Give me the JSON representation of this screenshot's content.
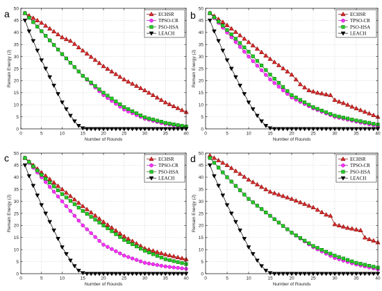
{
  "chart_data": [
    {
      "panel": "a",
      "type": "line",
      "xlabel": "Number of Rounds",
      "ylabel": "Remain Energy (J)",
      "xlim": [
        0,
        40
      ],
      "ylim": [
        0,
        50
      ],
      "xticks": [
        0,
        5,
        10,
        15,
        20,
        25,
        30,
        35,
        40
      ],
      "yticks": [
        0,
        5,
        10,
        15,
        20,
        25,
        30,
        35,
        40,
        45,
        50
      ],
      "grid": true,
      "legend": "top-right",
      "x": [
        1,
        2,
        3,
        4,
        5,
        6,
        7,
        8,
        9,
        10,
        11,
        12,
        13,
        14,
        15,
        16,
        17,
        18,
        19,
        20,
        21,
        22,
        23,
        24,
        25,
        26,
        27,
        28,
        29,
        30,
        31,
        32,
        33,
        34,
        35,
        36,
        37,
        38,
        39,
        40
      ],
      "series": [
        {
          "name": "ECHSR",
          "color": "#800000",
          "fill": "#d42a2a",
          "marker": "triangle-up",
          "values": [
            48,
            47,
            46,
            45,
            44,
            42.8,
            41.6,
            40.4,
            39.2,
            38,
            37.2,
            36.5,
            35.2,
            33.8,
            32.5,
            31.2,
            29.9,
            28.6,
            27.3,
            26,
            24.9,
            23.8,
            22.7,
            21.6,
            20.5,
            19.6,
            18.7,
            17.8,
            16.9,
            16,
            15,
            14,
            13,
            12,
            11,
            10.2,
            9.4,
            8.6,
            7.8,
            7
          ]
        },
        {
          "name": "TPSO-CR",
          "color": "#990099",
          "fill": "#ff33ff",
          "marker": "circle",
          "values": [
            48,
            46.1,
            44.3,
            42.4,
            40.5,
            38.6,
            36.7,
            34.8,
            32.9,
            31,
            29.2,
            27.4,
            25.6,
            23.8,
            22,
            20.4,
            18.8,
            17.2,
            15.6,
            14,
            12.8,
            11.6,
            10.4,
            9.2,
            8,
            7.2,
            6.5,
            5.7,
            5,
            4.2,
            3.8,
            3.3,
            2.9,
            2.4,
            2,
            1.8,
            1.5,
            1.3,
            1,
            0.8
          ]
        },
        {
          "name": "PSO-HSA",
          "color": "#006600",
          "fill": "#22cc22",
          "marker": "square",
          "values": [
            48,
            46.1,
            44.3,
            42.4,
            40.5,
            38.6,
            36.7,
            34.8,
            32.9,
            31,
            29.2,
            27.4,
            25.6,
            23.8,
            22,
            20.6,
            19.2,
            17.8,
            16.4,
            15,
            13.8,
            12.6,
            11.4,
            10.2,
            9,
            8.2,
            7.3,
            6.5,
            5.6,
            4.8,
            4.3,
            3.9,
            3.4,
            3,
            2.5,
            2.2,
            1.9,
            1.6,
            1.3,
            1
          ]
        },
        {
          "name": "LEACH",
          "color": "#000000",
          "fill": "#000000",
          "marker": "triangle-down",
          "values": [
            45,
            40.5,
            36.5,
            32.5,
            28.5,
            25,
            21.5,
            18,
            14.5,
            11,
            8.2,
            5.5,
            3.2,
            1.3,
            0.3,
            0,
            0,
            0,
            0,
            0,
            0,
            0,
            0,
            0,
            0,
            0,
            0,
            0,
            0,
            0,
            0,
            0,
            0,
            0,
            0,
            0,
            0,
            0,
            0,
            0
          ]
        }
      ]
    },
    {
      "panel": "b",
      "type": "line",
      "xlabel": "Number of Rounds",
      "ylabel": "Remain Energy (J)",
      "xlim": [
        0,
        40
      ],
      "ylim": [
        0,
        50
      ],
      "xticks": [
        0,
        5,
        10,
        15,
        20,
        25,
        30,
        35,
        40
      ],
      "yticks": [
        0,
        5,
        10,
        15,
        20,
        25,
        30,
        35,
        40,
        45,
        50
      ],
      "grid": true,
      "legend": "top-right",
      "x": [
        1,
        2,
        3,
        4,
        5,
        6,
        7,
        8,
        9,
        10,
        11,
        12,
        13,
        14,
        15,
        16,
        17,
        18,
        19,
        20,
        21,
        22,
        23,
        24,
        25,
        26,
        27,
        28,
        29,
        30,
        31,
        32,
        33,
        34,
        35,
        36,
        37,
        38,
        39,
        40
      ],
      "series": [
        {
          "name": "ECHSR",
          "color": "#800000",
          "fill": "#d42a2a",
          "marker": "triangle-up",
          "values": [
            48,
            46.8,
            45.5,
            44.3,
            43,
            41.6,
            40.2,
            38.8,
            37.4,
            36,
            34.6,
            33.2,
            31.8,
            30.4,
            29,
            27.7,
            26.4,
            25.1,
            23.8,
            22.5,
            20.5,
            18.5,
            17.2,
            16,
            15.5,
            15,
            14.7,
            14.3,
            14,
            12,
            11.3,
            10.7,
            10,
            9.2,
            8.5,
            7.8,
            7.1,
            6.4,
            5.7,
            5
          ]
        },
        {
          "name": "TPSO-CR",
          "color": "#990099",
          "fill": "#ff33ff",
          "marker": "circle",
          "values": [
            48,
            46,
            44,
            42,
            40,
            38,
            36,
            34,
            32,
            30,
            28.1,
            26.2,
            24.3,
            22.4,
            20.5,
            19,
            17.5,
            16,
            14.5,
            13,
            12.1,
            11.2,
            10.3,
            9.4,
            8.5,
            7.8,
            7.1,
            6.4,
            5.7,
            5,
            4.6,
            4.2,
            3.8,
            3.4,
            3,
            2.6,
            2.3,
            1.9,
            1.6,
            1.2
          ]
        },
        {
          "name": "PSO-HSA",
          "color": "#006600",
          "fill": "#22cc22",
          "marker": "square",
          "values": [
            48,
            46.3,
            44.5,
            42.8,
            41,
            39.2,
            37.4,
            35.6,
            33.8,
            32,
            30.1,
            28.2,
            26.3,
            24.4,
            22.5,
            20.8,
            19.1,
            17.4,
            15.7,
            14,
            13,
            12,
            11,
            10,
            9,
            8.3,
            7.6,
            6.9,
            6.2,
            5.5,
            5.1,
            4.7,
            4.3,
            3.9,
            3.5,
            3.2,
            2.8,
            2.5,
            2.1,
            1.8
          ]
        },
        {
          "name": "LEACH",
          "color": "#000000",
          "fill": "#000000",
          "marker": "triangle-down",
          "values": [
            45,
            40.5,
            36.5,
            32.5,
            28.5,
            25,
            21.5,
            18,
            14.5,
            11,
            8.2,
            5.5,
            3.2,
            1.3,
            0.3,
            0,
            0,
            0,
            0,
            0,
            0,
            0,
            0,
            0,
            0,
            0,
            0,
            0,
            0,
            0,
            0,
            0,
            0,
            0,
            0,
            0,
            0,
            0,
            0,
            0
          ]
        }
      ]
    },
    {
      "panel": "c",
      "type": "line",
      "xlabel": "Number of Rounds",
      "ylabel": "Remain Energy (J)",
      "xlim": [
        0,
        40
      ],
      "ylim": [
        0,
        50
      ],
      "xticks": [
        0,
        5,
        10,
        15,
        20,
        25,
        30,
        35,
        40
      ],
      "yticks": [
        0,
        5,
        10,
        15,
        20,
        25,
        30,
        35,
        40,
        45,
        50
      ],
      "grid": true,
      "legend": "top-right",
      "x": [
        1,
        2,
        3,
        4,
        5,
        6,
        7,
        8,
        9,
        10,
        11,
        12,
        13,
        14,
        15,
        16,
        17,
        18,
        19,
        20,
        21,
        22,
        23,
        24,
        25,
        26,
        27,
        28,
        29,
        30,
        31,
        32,
        33,
        34,
        35,
        36,
        37,
        38,
        39,
        40
      ],
      "series": [
        {
          "name": "ECHSR",
          "color": "#800000",
          "fill": "#d42a2a",
          "marker": "triangle-up",
          "values": [
            48,
            46.5,
            45,
            43.5,
            42,
            40.6,
            39.2,
            37.8,
            36.4,
            35,
            33.6,
            32.2,
            30.8,
            29.4,
            28,
            26.7,
            25.4,
            24.1,
            22.8,
            21.5,
            20.3,
            19.1,
            17.9,
            16.7,
            15.5,
            14.5,
            13.5,
            12.5,
            11.5,
            10.5,
            10,
            9.5,
            9,
            8.5,
            8,
            7.6,
            7.2,
            6.8,
            6.4,
            6
          ]
        },
        {
          "name": "TPSO-CR",
          "color": "#990099",
          "fill": "#ff33ff",
          "marker": "circle",
          "values": [
            48,
            46,
            44,
            42,
            40,
            38,
            36,
            34,
            32,
            30,
            28,
            26,
            24,
            22,
            20,
            18.4,
            16.8,
            15.2,
            13.6,
            12,
            11.1,
            10.2,
            9.3,
            8.4,
            7.5,
            6.9,
            6.3,
            5.7,
            5.1,
            4.5,
            4.2,
            3.9,
            3.6,
            3.3,
            3,
            2.8,
            2.6,
            2.4,
            2.2,
            2
          ]
        },
        {
          "name": "PSO-HSA",
          "color": "#006600",
          "fill": "#22cc22",
          "marker": "square",
          "values": [
            48,
            46.3,
            44.5,
            42.8,
            41,
            39.4,
            37.8,
            36.2,
            34.6,
            33,
            31.6,
            30.2,
            28.8,
            27.4,
            26,
            24.8,
            23.6,
            22.4,
            21.2,
            20,
            18.8,
            17.6,
            16.4,
            15.2,
            14,
            13.1,
            12.2,
            11.3,
            10.4,
            9.5,
            8.8,
            8.1,
            7.4,
            6.7,
            6,
            5.6,
            5.2,
            4.8,
            4.4,
            4
          ]
        },
        {
          "name": "LEACH",
          "color": "#000000",
          "fill": "#000000",
          "marker": "triangle-down",
          "values": [
            45,
            40.5,
            36.5,
            32.5,
            28.5,
            25,
            21.5,
            18,
            14.5,
            11,
            8.2,
            5.5,
            3.2,
            1.3,
            0.3,
            0,
            0,
            0,
            0,
            0,
            0,
            0,
            0,
            0,
            0,
            0,
            0,
            0,
            0,
            0,
            0,
            0,
            0,
            0,
            0,
            0,
            0,
            0,
            0,
            0
          ]
        }
      ]
    },
    {
      "panel": "d",
      "type": "line",
      "xlabel": "Number of Rounds",
      "ylabel": "Remain Energy (J)",
      "xlim": [
        0,
        40
      ],
      "ylim": [
        0,
        50
      ],
      "xticks": [
        0,
        5,
        10,
        15,
        20,
        25,
        30,
        35,
        40
      ],
      "yticks": [
        0,
        5,
        10,
        15,
        20,
        25,
        30,
        35,
        40,
        45,
        50
      ],
      "grid": true,
      "legend": "top-right",
      "x": [
        1,
        2,
        3,
        4,
        5,
        6,
        7,
        8,
        9,
        10,
        11,
        12,
        13,
        14,
        15,
        16,
        17,
        18,
        19,
        20,
        21,
        22,
        23,
        24,
        25,
        26,
        27,
        28,
        29,
        30,
        31,
        32,
        33,
        34,
        35,
        36,
        37,
        38,
        39,
        40
      ],
      "series": [
        {
          "name": "ECHSR",
          "color": "#800000",
          "fill": "#d42a2a",
          "marker": "triangle-up",
          "values": [
            49,
            48,
            47,
            46,
            45,
            43.8,
            42.6,
            41.4,
            40.2,
            39,
            38,
            37,
            36,
            35,
            34,
            33.4,
            32.8,
            32.2,
            31.6,
            31,
            30.3,
            29.6,
            28.9,
            28.2,
            27.5,
            26.5,
            25.5,
            24.5,
            24,
            20.5,
            20,
            19.5,
            19,
            18.7,
            18.3,
            18,
            15,
            14.3,
            13.7,
            13
          ]
        },
        {
          "name": "TPSO-CR",
          "color": "#990099",
          "fill": "#ff33ff",
          "marker": "circle",
          "values": [
            48,
            46,
            44,
            42,
            40,
            38.2,
            36.4,
            34.6,
            32.8,
            31,
            29.6,
            28.2,
            26.8,
            25.4,
            24,
            22.6,
            21.2,
            19.8,
            18.4,
            17,
            15.8,
            14.6,
            13.4,
            12.2,
            11,
            10.1,
            9.2,
            8.3,
            7.4,
            6.5,
            6,
            5.4,
            4.9,
            4.3,
            3.8,
            3.4,
            3,
            2.6,
            2.2,
            1.8
          ]
        },
        {
          "name": "PSO-HSA",
          "color": "#006600",
          "fill": "#22cc22",
          "marker": "square",
          "values": [
            48,
            46,
            44,
            42,
            40,
            38.2,
            36.4,
            34.6,
            32.8,
            31,
            29.6,
            28.2,
            26.8,
            25.4,
            24,
            22.6,
            21.2,
            19.8,
            18.4,
            17,
            15.9,
            14.8,
            13.7,
            12.6,
            11.5,
            10.7,
            9.9,
            9.1,
            8.3,
            7.5,
            6.9,
            6.3,
            5.7,
            5.1,
            4.5,
            4.1,
            3.7,
            3.3,
            2.9,
            2.5
          ]
        },
        {
          "name": "LEACH",
          "color": "#000000",
          "fill": "#000000",
          "marker": "triangle-down",
          "values": [
            45,
            40.5,
            36.5,
            32.5,
            28.5,
            25,
            21.5,
            18,
            14.5,
            11,
            8.2,
            5.5,
            3.2,
            1.3,
            0.3,
            0,
            0,
            0,
            0,
            0,
            0,
            0,
            0,
            0,
            0,
            0,
            0,
            0,
            0,
            0,
            0,
            0,
            0,
            0,
            0,
            0,
            0,
            0,
            0,
            0
          ]
        }
      ]
    }
  ]
}
